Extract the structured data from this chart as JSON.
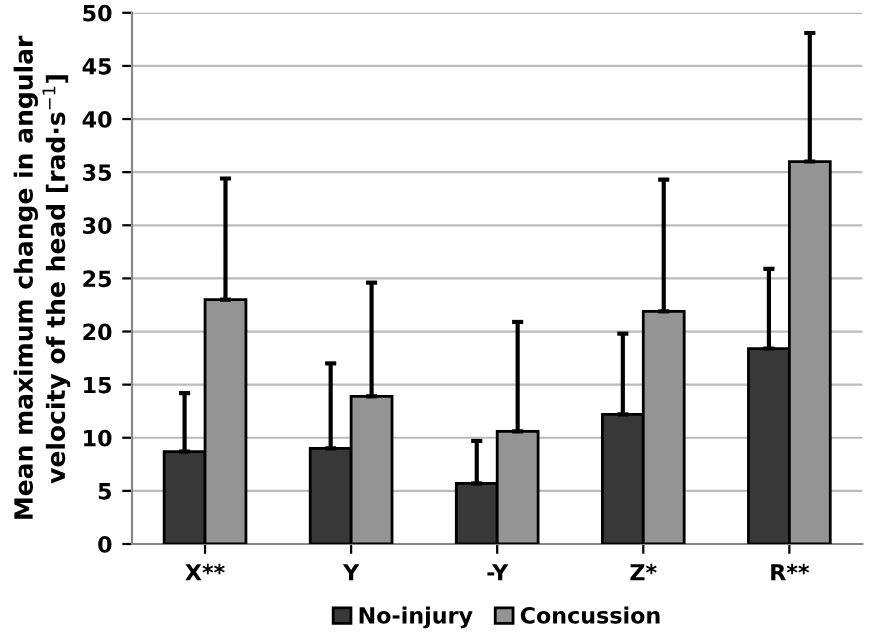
{
  "chart_data": {
    "type": "bar",
    "ylabel": "Mean maximum change in angular velocity of the head [rad·s$^{−1}$]",
    "categories": [
      "X**",
      "Y",
      "-Y",
      "Z*",
      "R**"
    ],
    "series": [
      {
        "name": "No-injury",
        "color": "#383838",
        "values": [
          8.7,
          9.0,
          5.7,
          12.2,
          18.4
        ],
        "errors": [
          [
            8.7,
            14.2
          ],
          [
            9.0,
            17.0
          ],
          [
            5.7,
            9.7
          ],
          [
            12.2,
            19.8
          ],
          [
            18.4,
            25.9
          ]
        ]
      },
      {
        "name": "Concussion",
        "color": "#949494",
        "values": [
          23.0,
          13.9,
          10.6,
          21.9,
          36.0
        ],
        "errors": [
          [
            23.0,
            34.4
          ],
          [
            13.9,
            24.6
          ],
          [
            10.6,
            20.9
          ],
          [
            21.9,
            34.3
          ],
          [
            36.0,
            48.1
          ]
        ]
      }
    ],
    "ylim": [
      0,
      50
    ],
    "yticks": [
      0,
      5,
      10,
      15,
      20,
      25,
      30,
      35,
      40,
      45,
      50
    ],
    "grid": "y",
    "legend": "bottom"
  }
}
